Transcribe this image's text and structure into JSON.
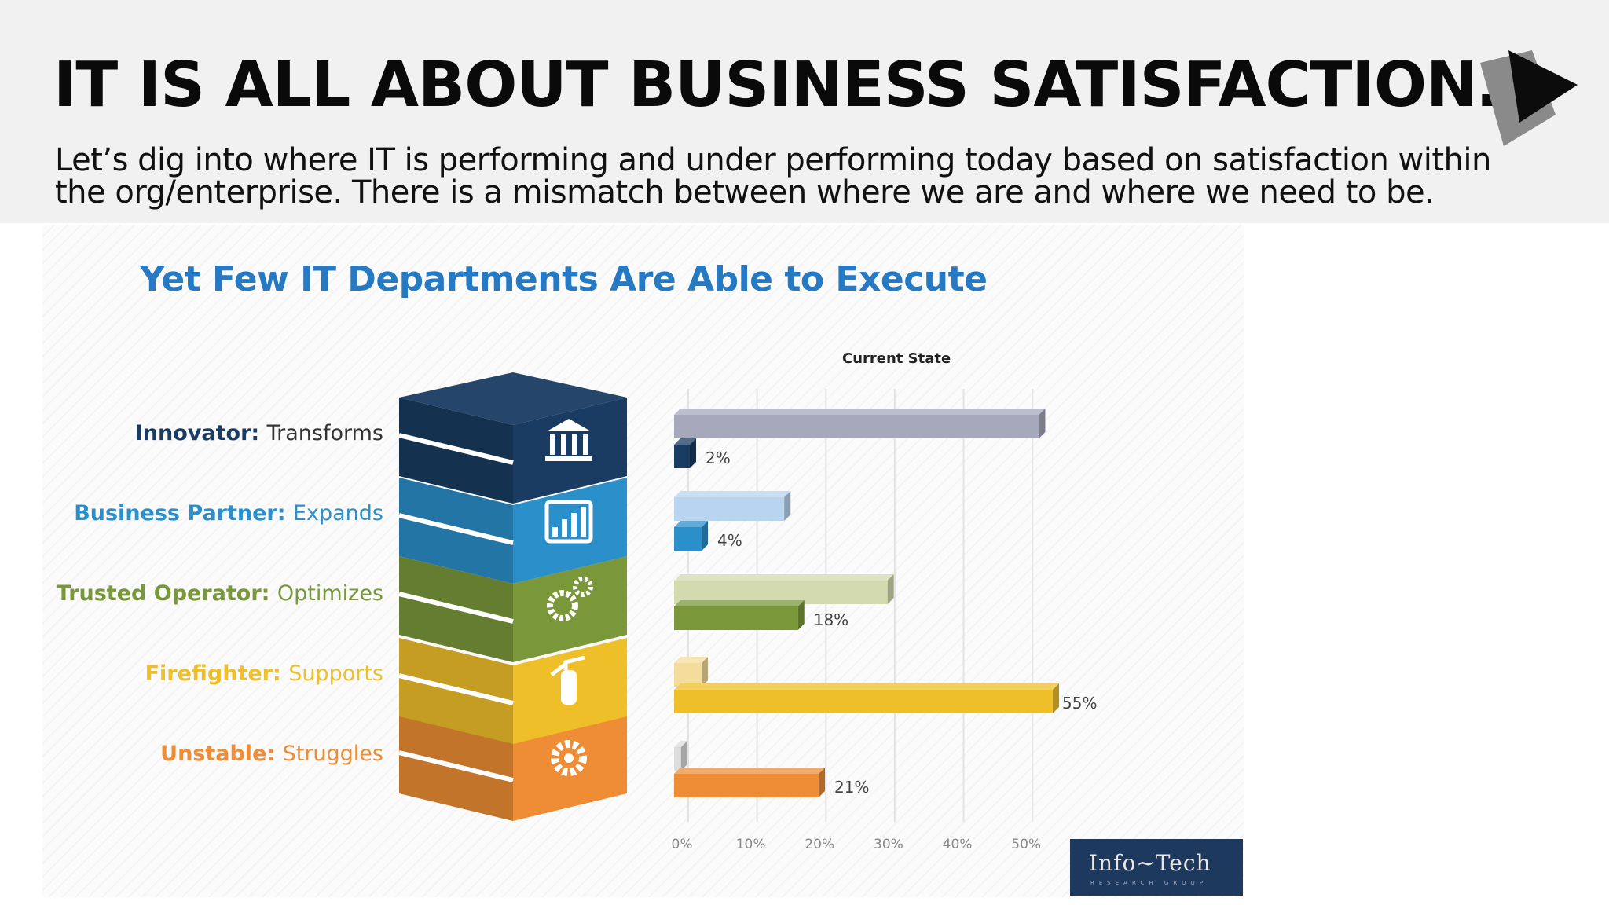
{
  "slide": {
    "title": "IT IS ALL ABOUT BUSINESS SATISFACTION…",
    "subtitle_line1": "Let’s dig into where IT is performing and under performing today based on satisfaction within",
    "subtitle_line2": "the org/enterprise. There is a mismatch between where we are and where we need to be."
  },
  "infographic": {
    "title": "Yet Few IT Departments Are Able to Execute",
    "stages": [
      {
        "name": "Innovator",
        "desc": "Transforms",
        "color": "#1a3c62",
        "icon": "bank-icon"
      },
      {
        "name": "Business Partner",
        "desc": "Expands",
        "color": "#2b8fc9",
        "icon": "bar-chart-icon"
      },
      {
        "name": "Trusted Operator",
        "desc": "Optimizes",
        "color": "#7a983a",
        "icon": "gears-icon"
      },
      {
        "name": "Firefighter",
        "desc": "Supports",
        "color": "#efbf2a",
        "icon": "fire-extinguisher-icon"
      },
      {
        "name": "Unstable",
        "desc": "Struggles",
        "color": "#ee8d35",
        "icon": "gear-icon"
      }
    ],
    "brand": {
      "name": "Info~Tech",
      "sub": "RESEARCH GROUP"
    }
  },
  "chart_data": {
    "type": "bar",
    "orientation": "horizontal",
    "title": "",
    "categories": [
      "Innovator",
      "Business Partner",
      "Trusted Operator",
      "Firefighter",
      "Unstable"
    ],
    "series": [
      {
        "name": "",
        "values": [
          53,
          16,
          31,
          4,
          1
        ],
        "colors": [
          "#a6a8bb",
          "#b9d4ef",
          "#d4dab0",
          "#f4dc9c",
          "#dddddd"
        ]
      },
      {
        "name": "Current State",
        "values": [
          2,
          4,
          18,
          55,
          21
        ],
        "colors": [
          "#1a3c62",
          "#2b8fc9",
          "#7a983a",
          "#efbf2a",
          "#ee8d35"
        ],
        "labels": [
          "2%",
          "4%",
          "18%",
          "55%",
          "21%"
        ]
      }
    ],
    "x_ticks": [
      "0%",
      "10%",
      "20%",
      "30%",
      "40%",
      "50%"
    ],
    "xlim": [
      0,
      55
    ],
    "grid": true
  }
}
